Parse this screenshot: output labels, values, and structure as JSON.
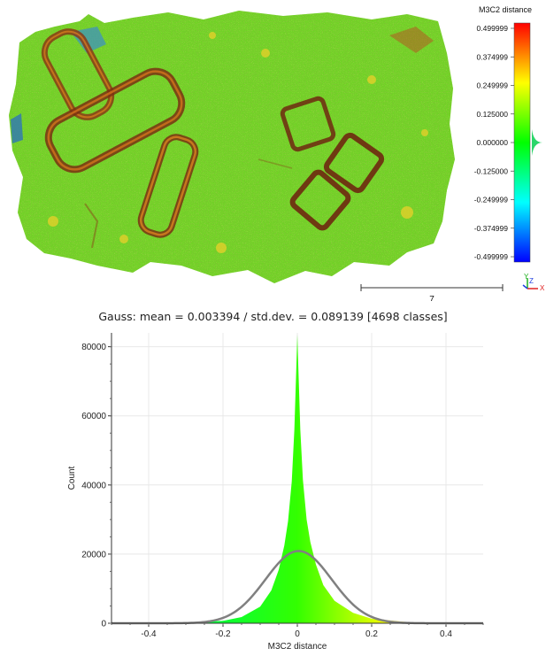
{
  "view": {
    "scalebar_label": "7",
    "scale": {
      "title": "M3C2 distance",
      "ticks": [
        "0.499999",
        "0.374999",
        "0.249999",
        "0.125000",
        "0.000000",
        "-0.125000",
        "-0.249999",
        "-0.374999",
        "-0.499999"
      ],
      "range": [
        -0.499999,
        0.499999
      ],
      "colors": [
        "#0000ff",
        "#00ffff",
        "#00ff00",
        "#ffff00",
        "#ff0000"
      ]
    },
    "axes": {
      "x_label": "X",
      "y_label": "Y",
      "z_label": "Z",
      "x_color": "#e02020",
      "y_color": "#20b020",
      "z_color": "#2040e0"
    }
  },
  "chart_data": {
    "type": "area",
    "title": "Gauss: mean = 0.003394 / std.dev. = 0.089139 [4698 classes]",
    "xlabel": "M3C2 distance",
    "ylabel": "Count",
    "xlim": [
      -0.5,
      0.5
    ],
    "ylim": [
      0,
      84000
    ],
    "x_ticks": [
      -0.4,
      -0.2,
      0,
      0.2,
      0.4
    ],
    "x_tick_labels": [
      "-0.4",
      "-0.2",
      "0",
      "0.2",
      "0.4"
    ],
    "y_ticks": [
      0,
      20000,
      40000,
      60000,
      80000
    ],
    "y_tick_labels": [
      "0",
      "20000",
      "40000",
      "60000",
      "80000"
    ],
    "grid": true,
    "histogram": {
      "x": [
        -0.5,
        -0.3,
        -0.2,
        -0.15,
        -0.1,
        -0.07,
        -0.05,
        -0.035,
        -0.025,
        -0.015,
        -0.008,
        -0.003,
        0,
        0.003,
        0.008,
        0.015,
        0.025,
        0.035,
        0.05,
        0.07,
        0.1,
        0.15,
        0.2,
        0.3,
        0.5
      ],
      "y": [
        0,
        150,
        700,
        1800,
        4800,
        9500,
        15500,
        22500,
        29500,
        41000,
        56000,
        73000,
        83500,
        73000,
        56000,
        41500,
        30000,
        23500,
        17000,
        11000,
        6500,
        3000,
        1300,
        300,
        0
      ]
    },
    "gauss": {
      "mean": 0.003394,
      "std": 0.089139,
      "peak": 20900,
      "color": "#808080"
    }
  }
}
